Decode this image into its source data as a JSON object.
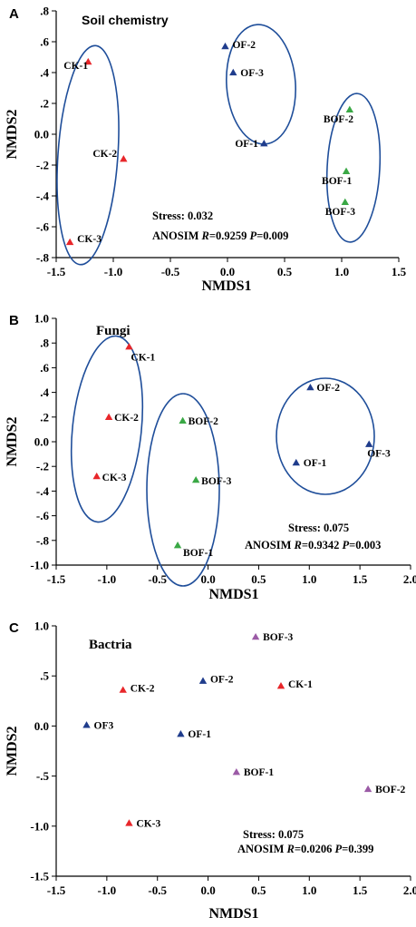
{
  "chart_data": [
    {
      "type": "scatter",
      "panel": "A",
      "title": "Soil chemistry",
      "xlabel": "NMDS1",
      "ylabel": "NMDS2",
      "xlim": [
        -1.5,
        1.5
      ],
      "ylim": [
        -0.8,
        0.8
      ],
      "xticks": [
        -1.5,
        -1.0,
        -0.5,
        0.0,
        0.5,
        1.0,
        1.5
      ],
      "xtick_labels": [
        "-1.5",
        "-1.0",
        "-0.5",
        "0.0",
        "0.5",
        "1.0",
        "1.5"
      ],
      "yticks": [
        0.8,
        0.6,
        0.4,
        0.2,
        0.0,
        -0.2,
        -0.4,
        -0.6,
        -0.8
      ],
      "ytick_labels": [
        ".8",
        ".6",
        ".4",
        ".2",
        "0.0",
        "-.2",
        "-.4",
        "-.6",
        "-.8"
      ],
      "stress": "Stress: 0.032",
      "anosim": {
        "prefix": "ANOSIM ",
        "r_label": "R",
        "r_value": "=0.9259 ",
        "p_label": "P",
        "p_value": "=0.009"
      },
      "points": [
        {
          "label": "CK-1",
          "x": -1.22,
          "y": 0.47,
          "color": "#e8262a"
        },
        {
          "label": "CK-2",
          "x": -0.91,
          "y": -0.16,
          "color": "#e8262a"
        },
        {
          "label": "CK-3",
          "x": -1.38,
          "y": -0.7,
          "color": "#e8262a"
        },
        {
          "label": "OF-2",
          "x": -0.02,
          "y": 0.57,
          "color": "#1f3c8c"
        },
        {
          "label": "OF-3",
          "x": 0.05,
          "y": 0.4,
          "color": "#1f3c8c"
        },
        {
          "label": "OF-1",
          "x": 0.32,
          "y": -0.06,
          "color": "#1f3c8c"
        },
        {
          "label": "BOF-2",
          "x": 1.07,
          "y": 0.16,
          "color": "#3aa845"
        },
        {
          "label": "BOF-1",
          "x": 1.04,
          "y": -0.24,
          "color": "#3aa845"
        },
        {
          "label": "BOF-3",
          "x": 1.03,
          "y": -0.44,
          "color": "#3aa845"
        }
      ]
    },
    {
      "type": "scatter",
      "panel": "B",
      "title": "Fungi",
      "xlabel": "NMDS1",
      "ylabel": "NMDS2",
      "xlim": [
        -1.5,
        2.0
      ],
      "ylim": [
        -1.0,
        1.0
      ],
      "xticks": [
        -1.5,
        -1.0,
        -0.5,
        0.0,
        0.5,
        1.0,
        1.5,
        2.0
      ],
      "xtick_labels": [
        "-1.5",
        "-1.0",
        "-0.5",
        "0.0",
        "0.5",
        "1.0",
        "1.5",
        "2.0"
      ],
      "yticks": [
        1.0,
        0.8,
        0.6,
        0.4,
        0.2,
        0.0,
        -0.2,
        -0.4,
        -0.6,
        -0.8,
        -1.0
      ],
      "ytick_labels": [
        "1.0",
        ".8",
        ".6",
        ".4",
        ".2",
        "0.0",
        "-.2",
        "-.4",
        "-.6",
        "-.8",
        "-1.0"
      ],
      "stress": "Stress: 0.075",
      "anosim": {
        "prefix": "ANOSIM ",
        "r_label": "R",
        "r_value": "=0.9342 ",
        "p_label": "P",
        "p_value": "=0.003"
      },
      "points": [
        {
          "label": "CK-1",
          "x": -0.78,
          "y": 0.77,
          "color": "#e8262a"
        },
        {
          "label": "CK-2",
          "x": -0.98,
          "y": 0.2,
          "color": "#e8262a"
        },
        {
          "label": "CK-3",
          "x": -1.1,
          "y": -0.28,
          "color": "#e8262a"
        },
        {
          "label": "BOF-2",
          "x": -0.25,
          "y": 0.17,
          "color": "#3aa845"
        },
        {
          "label": "BOF-3",
          "x": -0.12,
          "y": -0.31,
          "color": "#3aa845"
        },
        {
          "label": "BOF-1",
          "x": -0.3,
          "y": -0.84,
          "color": "#3aa845"
        },
        {
          "label": "OF-2",
          "x": 1.01,
          "y": 0.44,
          "color": "#1f3c8c"
        },
        {
          "label": "OF-1",
          "x": 0.87,
          "y": -0.17,
          "color": "#1f3c8c"
        },
        {
          "label": "OF-3",
          "x": 1.59,
          "y": -0.02,
          "color": "#1f3c8c"
        }
      ]
    },
    {
      "type": "scatter",
      "panel": "C",
      "title": "Bactria",
      "xlabel": "NMDS1",
      "ylabel": "NMDS2",
      "xlim": [
        -1.5,
        2.0
      ],
      "ylim": [
        -1.5,
        1.0
      ],
      "xticks": [
        -1.5,
        -1.0,
        -0.5,
        0.0,
        0.5,
        1.0,
        1.5,
        2.0
      ],
      "xtick_labels": [
        "-1.5",
        "-1.0",
        "-0.5",
        "0.0",
        "0.5",
        "1.0",
        "1.5",
        "2.0"
      ],
      "yticks": [
        1.0,
        0.5,
        0.0,
        -0.5,
        -1.0,
        -1.5
      ],
      "ytick_labels": [
        "1.0",
        ".5",
        "0.0",
        "-.5",
        "-1.0",
        "-1.5"
      ],
      "stress": "Stress: 0.075",
      "anosim": {
        "prefix": "ANOSIM ",
        "r_label": "R",
        "r_value": "=0.0206 ",
        "p_label": "P",
        "p_value": "=0.399"
      },
      "points": [
        {
          "label": "BOF-3",
          "x": 0.47,
          "y": 0.89,
          "color": "#9b5ba6"
        },
        {
          "label": "CK-2",
          "x": -0.84,
          "y": 0.36,
          "color": "#e8262a"
        },
        {
          "label": "OF-2",
          "x": -0.05,
          "y": 0.45,
          "color": "#1f3c8c"
        },
        {
          "label": "CK-1",
          "x": 0.72,
          "y": 0.4,
          "color": "#e8262a"
        },
        {
          "label": "OF3",
          "x": -1.2,
          "y": 0.01,
          "color": "#1f3c8c"
        },
        {
          "label": "OF-1",
          "x": -0.27,
          "y": -0.08,
          "color": "#1f3c8c"
        },
        {
          "label": "BOF-1",
          "x": 0.28,
          "y": -0.46,
          "color": "#9b5ba6"
        },
        {
          "label": "BOF-2",
          "x": 1.58,
          "y": -0.63,
          "color": "#9b5ba6"
        },
        {
          "label": "CK-3",
          "x": -0.78,
          "y": -0.97,
          "color": "#e8262a"
        }
      ]
    }
  ]
}
